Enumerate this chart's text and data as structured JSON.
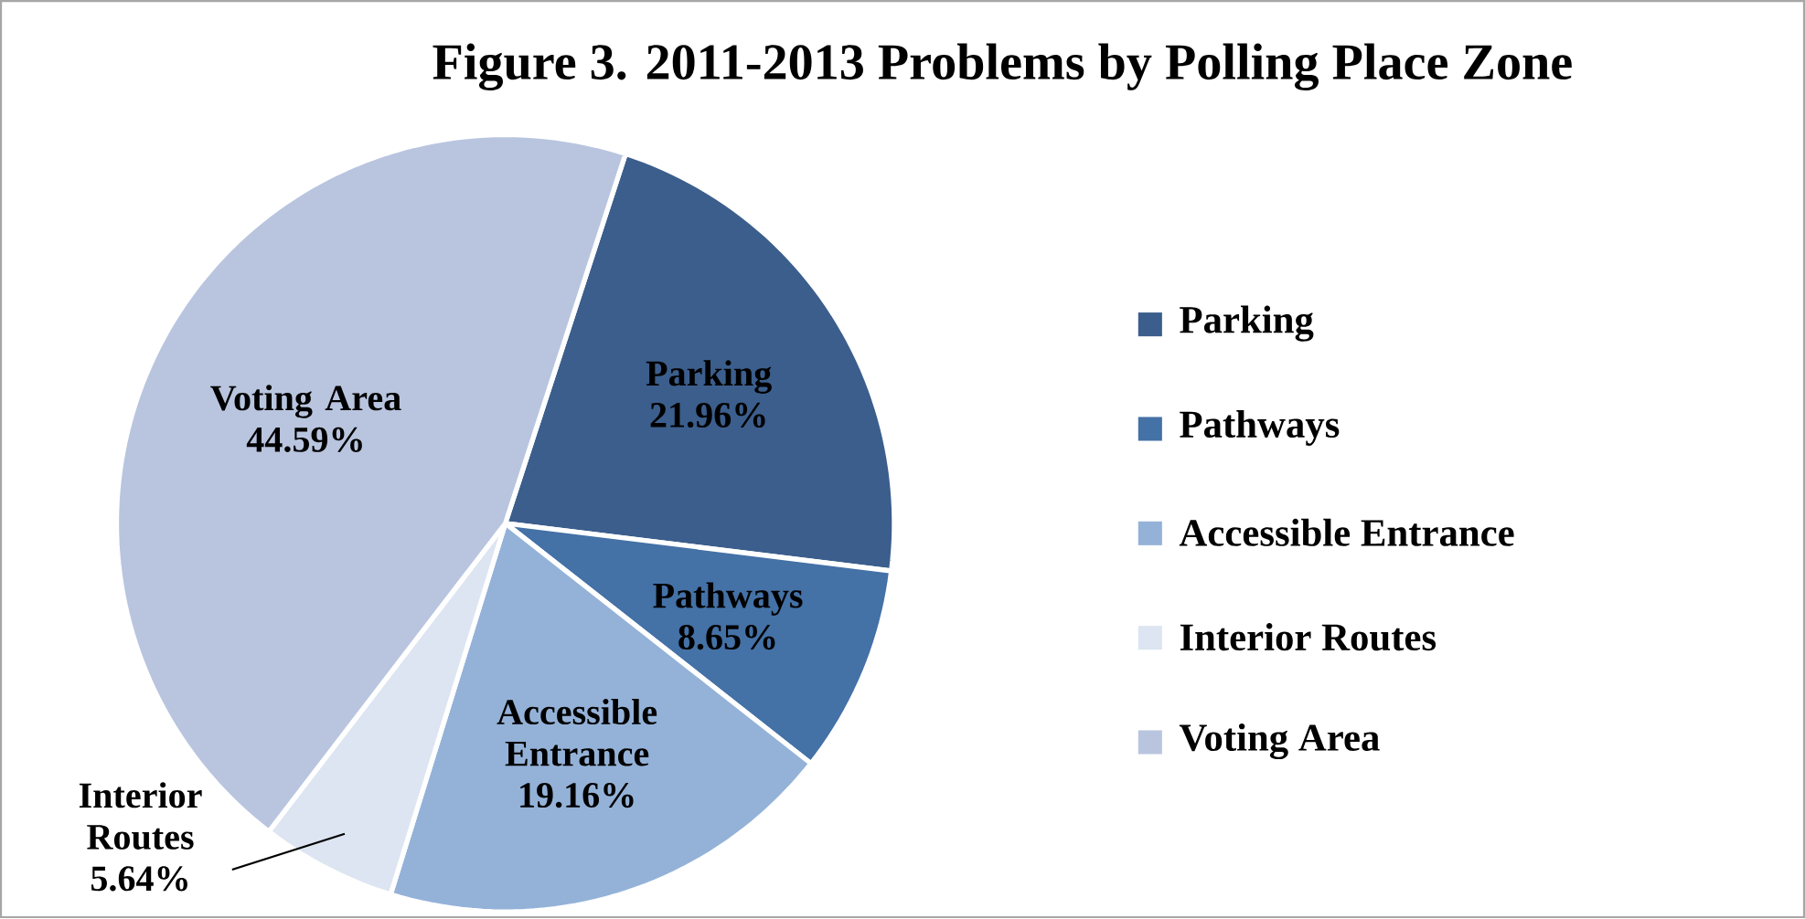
{
  "chart_data": {
    "type": "pie",
    "title": "Figure 3. 2011-2013 Problems by Polling Place Zone",
    "categories": [
      "Parking",
      "Pathways",
      "Accessible Entrance",
      "Interior Routes",
      "Voting Area"
    ],
    "values": [
      21.96,
      8.65,
      19.16,
      5.64,
      44.59
    ],
    "colors": [
      "#3b5e8c",
      "#4471a6",
      "#94b2d8",
      "#dce5f1",
      "#b9c5df"
    ],
    "value_labels": [
      "21.96%",
      "8.65%",
      "19.16%",
      "5.64%",
      "44.59%"
    ],
    "legend": "right"
  }
}
